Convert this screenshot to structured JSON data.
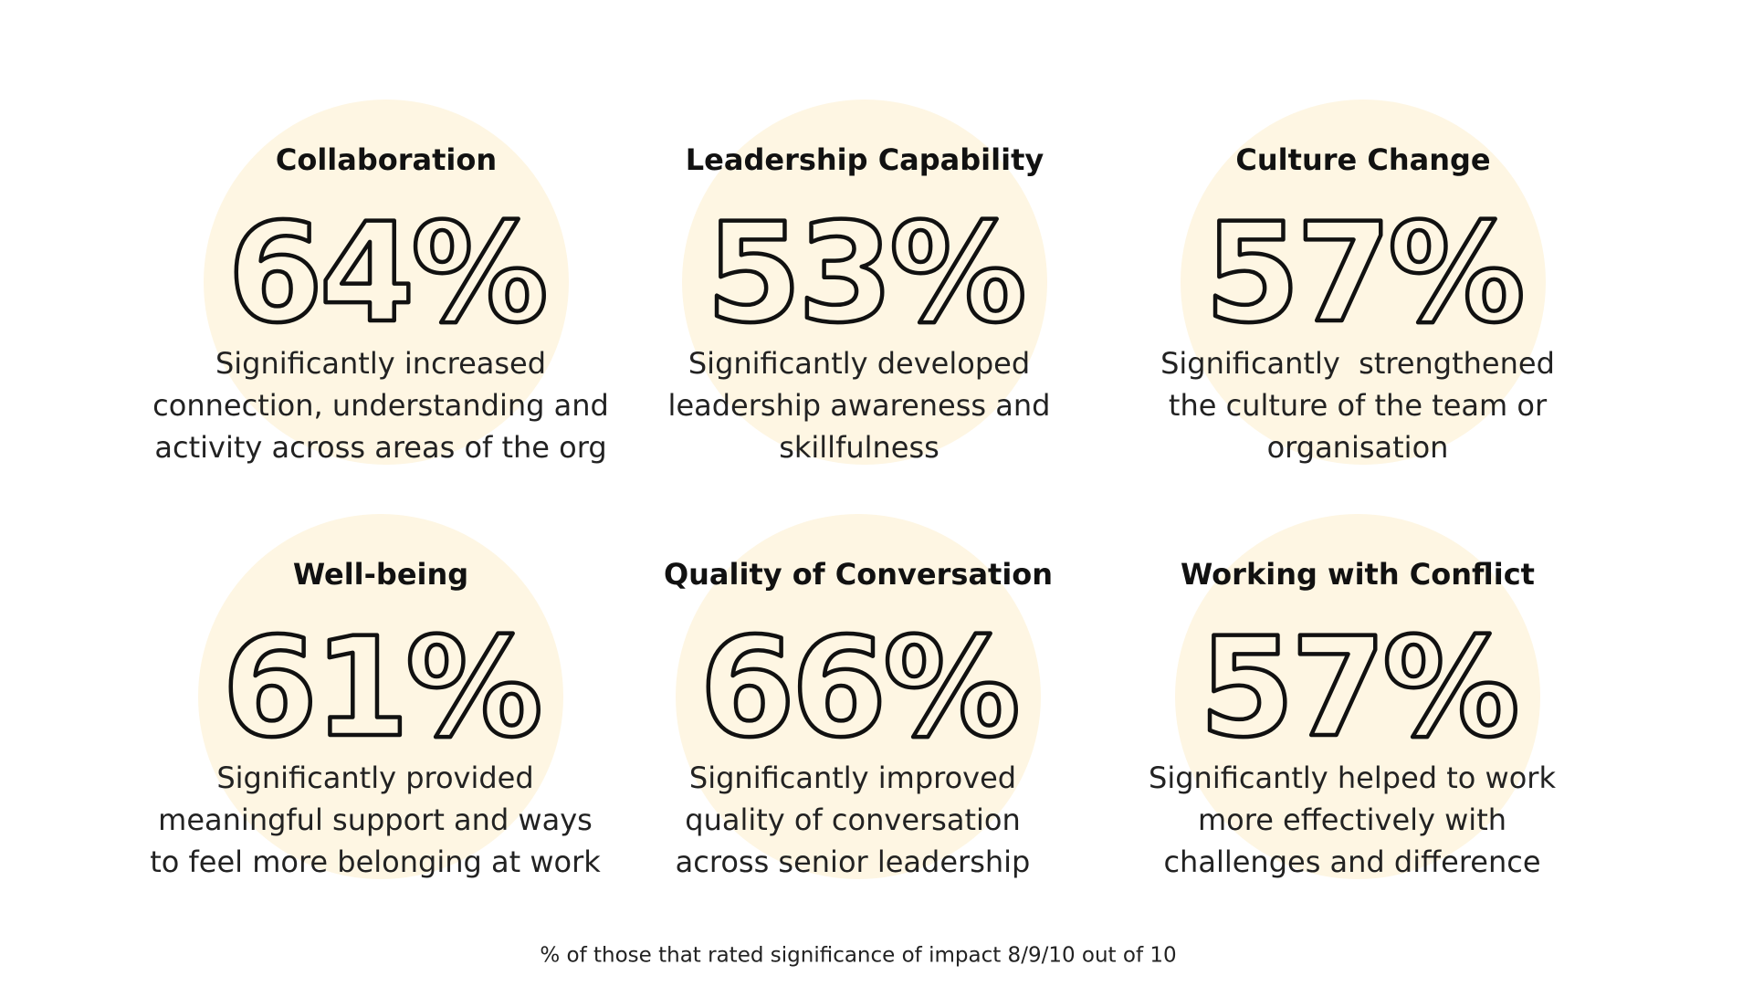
{
  "cards": [
    {
      "title": "Collaboration",
      "value": "64%",
      "description": [
        "Significantly increased",
        "connection, understanding and",
        "activity across areas of the org"
      ]
    },
    {
      "title": "Leadership Capability",
      "value": "53%",
      "description": [
        "Significantly developed",
        "leadership awareness and",
        "skillfulness"
      ]
    },
    {
      "title": "Culture Change",
      "value": "57%",
      "description": [
        "Significantly  strengthened",
        "the culture of the team or",
        "organisation"
      ]
    },
    {
      "title": "Well-being",
      "value": "61%",
      "description": [
        "Significantly provided",
        "meaningful support and ways",
        "to feel more belonging at work"
      ]
    },
    {
      "title": "Quality of Conversation",
      "value": "66%",
      "description": [
        "Significantly improved",
        "quality of conversation",
        "across senior leadership"
      ]
    },
    {
      "title": "Working with Conflict",
      "value": "57%",
      "description": [
        "Significantly helped to work",
        "more effectively with",
        "challenges and difference"
      ]
    }
  ],
  "footnote": "% of those that rated significance of impact 8/9/10 out of 10"
}
